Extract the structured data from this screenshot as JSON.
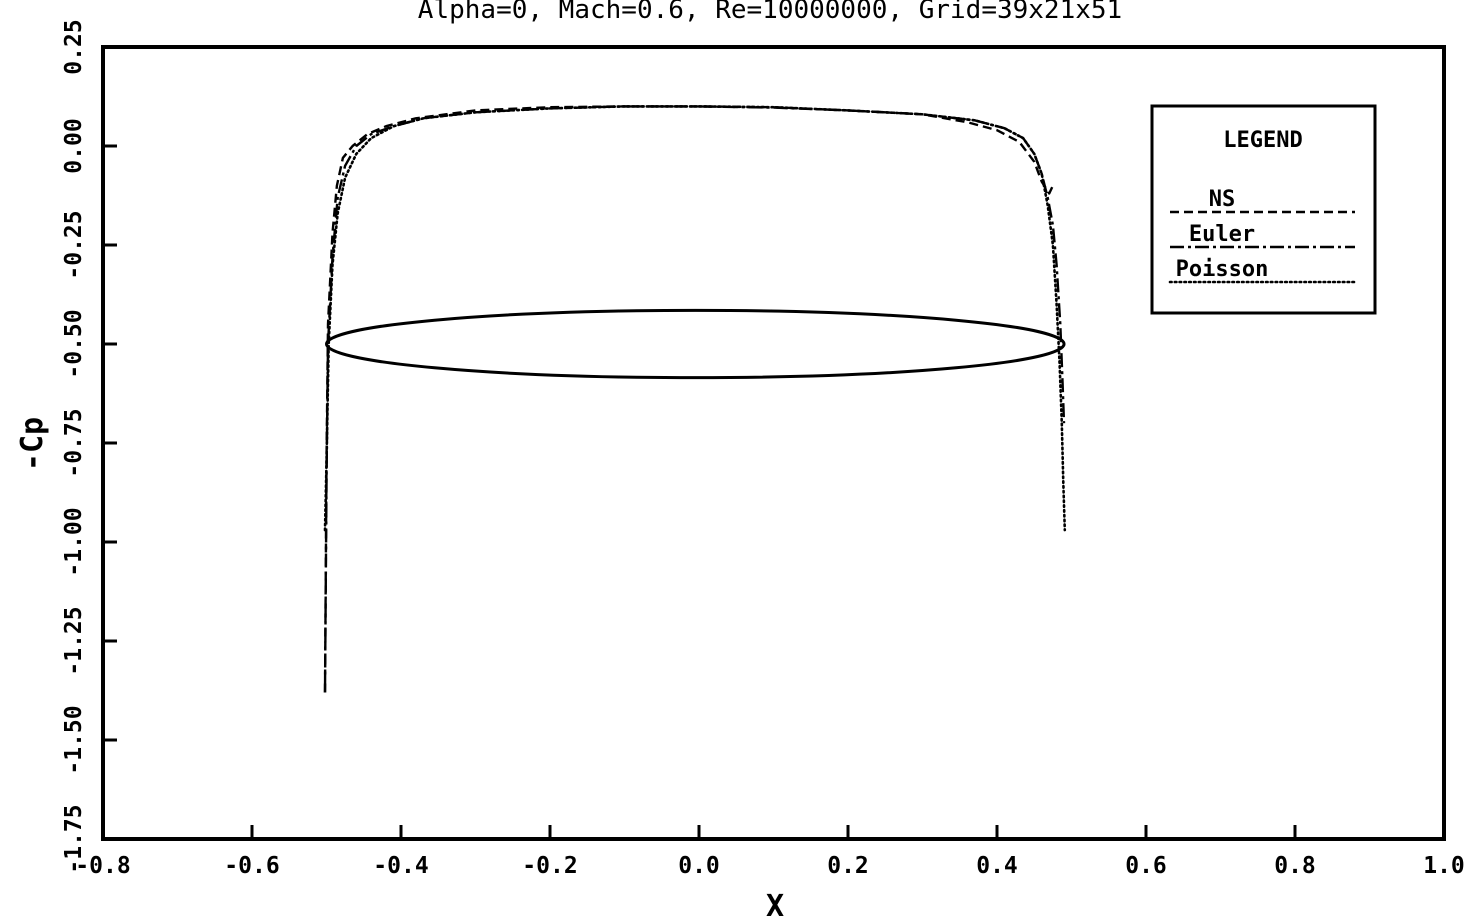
{
  "chart_data": {
    "type": "line",
    "title": "Alpha=0, Mach=0.6, Re=10000000, Grid=39x21x51",
    "xlabel": "X",
    "ylabel": "-Cp",
    "xlim": [
      -0.8,
      1.0
    ],
    "ylim": [
      -1.75,
      0.25
    ],
    "y_inverted": false,
    "xticks": [
      -0.8,
      -0.6,
      -0.4,
      -0.2,
      0.0,
      0.2,
      0.4,
      0.6,
      0.8,
      1.0
    ],
    "xtick_labels": [
      "-0.8",
      "-0.6",
      "-0.4",
      "-0.2",
      "0.0",
      "0.2",
      "0.4",
      "0.6",
      "0.8",
      "1.0"
    ],
    "yticks": [
      0.25,
      0.0,
      -0.25,
      -0.5,
      -0.75,
      -1.0,
      -1.25,
      -1.5,
      -1.75
    ],
    "ytick_labels": [
      "0.25",
      "0.00",
      "-0.25",
      "-0.50",
      "-0.75",
      "-1.00",
      "-1.25",
      "-1.50",
      "-1.75"
    ],
    "grid": false,
    "legend": {
      "title": "LEGEND",
      "position": "top-right"
    },
    "series": [
      {
        "name": "NS",
        "style": "dashed",
        "x": [
          -0.502,
          -0.5,
          -0.498,
          -0.492,
          -0.486,
          -0.478,
          -0.465,
          -0.445,
          -0.42,
          -0.38,
          -0.3,
          -0.2,
          -0.1,
          0.0,
          0.1,
          0.2,
          0.3,
          0.36,
          0.4,
          0.43,
          0.45,
          0.46,
          0.47,
          0.475
        ],
        "y": [
          -1.38,
          -0.8,
          -0.45,
          -0.22,
          -0.1,
          -0.03,
          0.0,
          0.03,
          0.05,
          0.07,
          0.09,
          0.098,
          0.1,
          0.1,
          0.098,
          0.09,
          0.08,
          0.06,
          0.04,
          0.01,
          -0.04,
          -0.09,
          -0.12,
          -0.1
        ]
      },
      {
        "name": "Euler",
        "style": "dash-dot",
        "x": [
          -0.502,
          -0.5,
          -0.498,
          -0.492,
          -0.485,
          -0.475,
          -0.46,
          -0.44,
          -0.41,
          -0.37,
          -0.3,
          -0.2,
          -0.1,
          0.0,
          0.1,
          0.2,
          0.3,
          0.37,
          0.41,
          0.435,
          0.45,
          0.46,
          0.468,
          0.475,
          0.48,
          0.485,
          0.488,
          0.49
        ],
        "y": [
          -1.38,
          -0.85,
          -0.5,
          -0.28,
          -0.13,
          -0.05,
          0.0,
          0.03,
          0.05,
          0.07,
          0.085,
          0.095,
          0.1,
          0.1,
          0.097,
          0.09,
          0.08,
          0.065,
          0.045,
          0.02,
          -0.02,
          -0.07,
          -0.13,
          -0.2,
          -0.3,
          -0.45,
          -0.6,
          -0.7
        ]
      },
      {
        "name": "Poisson",
        "style": "dotted",
        "x": [
          -0.502,
          -0.5,
          -0.497,
          -0.492,
          -0.485,
          -0.475,
          -0.46,
          -0.44,
          -0.41,
          -0.37,
          -0.3,
          -0.2,
          -0.1,
          0.0,
          0.1,
          0.2,
          0.3,
          0.37,
          0.41,
          0.435,
          0.45,
          0.46,
          0.468,
          0.475,
          0.48,
          0.484,
          0.487,
          0.489,
          0.491
        ],
        "y": [
          -0.97,
          -0.8,
          -0.5,
          -0.3,
          -0.17,
          -0.08,
          -0.02,
          0.02,
          0.05,
          0.07,
          0.085,
          0.095,
          0.1,
          0.1,
          0.098,
          0.09,
          0.08,
          0.065,
          0.045,
          0.02,
          -0.02,
          -0.07,
          -0.15,
          -0.25,
          -0.4,
          -0.55,
          -0.7,
          -0.85,
          -0.97
        ]
      }
    ],
    "overlay": {
      "name": "airfoil",
      "style": "solid",
      "x_start": -0.5,
      "x_end": 0.49,
      "center_y": -0.5,
      "upper_y": -0.415,
      "lower_y": -0.585
    }
  }
}
